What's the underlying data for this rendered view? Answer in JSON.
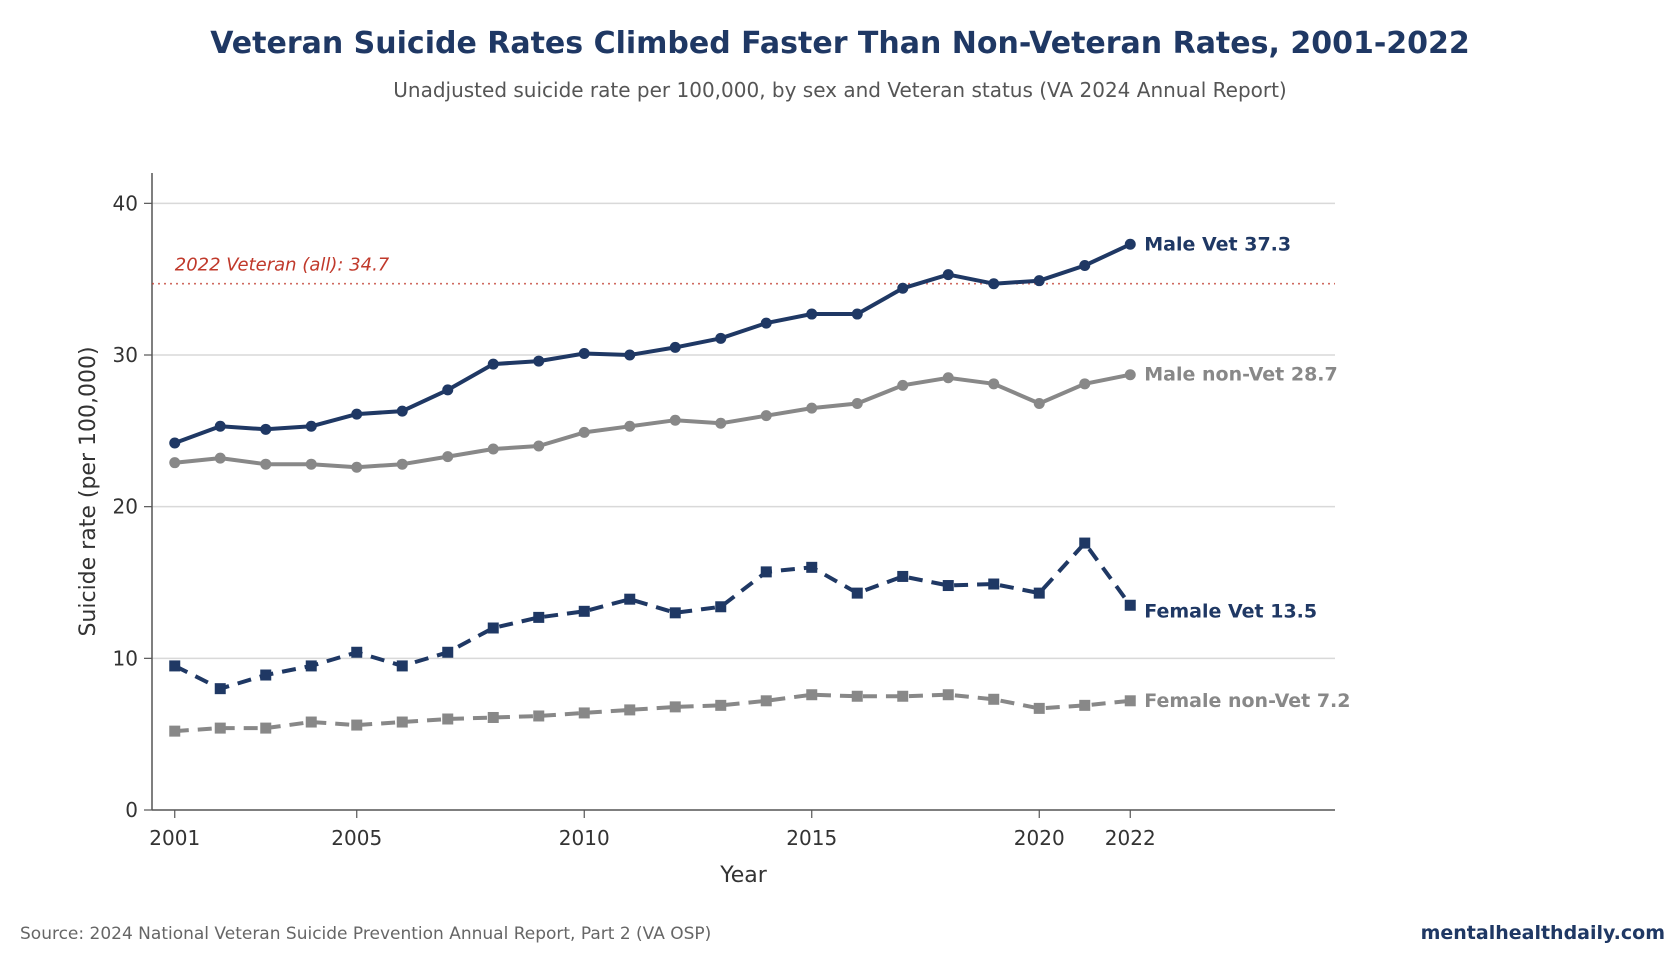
{
  "title": "Veteran Suicide Rates Climbed Faster Than Non-Veteran Rates, 2001-2022",
  "subtitle": "Unadjusted suicide rate per 100,000, by sex and Veteran status (VA 2024 Annual Report)",
  "source": "Source: 2024 National Veteran Suicide Prevention Annual Report, Part 2 (VA OSP)",
  "brand": "mentalhealthdaily.com",
  "chart_data": {
    "type": "line",
    "xlabel": "Year",
    "ylabel": "Suicide rate (per 100,000)",
    "xlim": [
      2000.5,
      2026.5
    ],
    "ylim": [
      0,
      42
    ],
    "x_ticks": [
      2001,
      2005,
      2010,
      2015,
      2020,
      2022
    ],
    "y_ticks": [
      0,
      10,
      20,
      30,
      40
    ],
    "grid": "horizontal",
    "x": [
      2001,
      2002,
      2003,
      2004,
      2005,
      2006,
      2007,
      2008,
      2009,
      2010,
      2011,
      2012,
      2013,
      2014,
      2015,
      2016,
      2017,
      2018,
      2019,
      2020,
      2021,
      2022
    ],
    "reference_line": {
      "value": 34.7,
      "label": "2022 Veteran (all): 34.7",
      "color": "#c0392b"
    },
    "series": [
      {
        "label": "Male Vet 37.3",
        "color": "#1f3864",
        "dash": false,
        "marker": "circle",
        "values": [
          24.2,
          25.3,
          25.1,
          25.3,
          26.1,
          26.3,
          27.7,
          29.4,
          29.6,
          30.1,
          30.0,
          30.5,
          31.1,
          32.1,
          32.7,
          32.7,
          34.4,
          35.3,
          34.7,
          34.9,
          35.9,
          37.3
        ]
      },
      {
        "label": "Male non-Vet 28.7",
        "color": "#888888",
        "dash": false,
        "marker": "circle",
        "values": [
          22.9,
          23.2,
          22.8,
          22.8,
          22.6,
          22.8,
          23.3,
          23.8,
          24.0,
          24.9,
          25.3,
          25.7,
          25.5,
          26.0,
          26.5,
          26.8,
          28.0,
          28.5,
          28.1,
          26.8,
          28.1,
          28.7
        ]
      },
      {
        "label": "Female Vet 13.5",
        "color": "#1f3864",
        "dash": true,
        "marker": "square",
        "values": [
          9.5,
          8.0,
          8.9,
          9.5,
          10.4,
          9.5,
          10.4,
          12.0,
          12.7,
          13.1,
          13.9,
          13.0,
          13.4,
          15.7,
          16.0,
          14.3,
          15.4,
          14.8,
          14.9,
          14.3,
          17.6,
          13.5
        ]
      },
      {
        "label": "Female non-Vet 7.2",
        "color": "#888888",
        "dash": true,
        "marker": "square",
        "values": [
          5.2,
          5.4,
          5.4,
          5.8,
          5.6,
          5.8,
          6.0,
          6.1,
          6.2,
          6.4,
          6.6,
          6.8,
          6.9,
          7.2,
          7.6,
          7.5,
          7.5,
          7.6,
          7.3,
          6.7,
          6.9,
          7.2
        ]
      }
    ]
  }
}
